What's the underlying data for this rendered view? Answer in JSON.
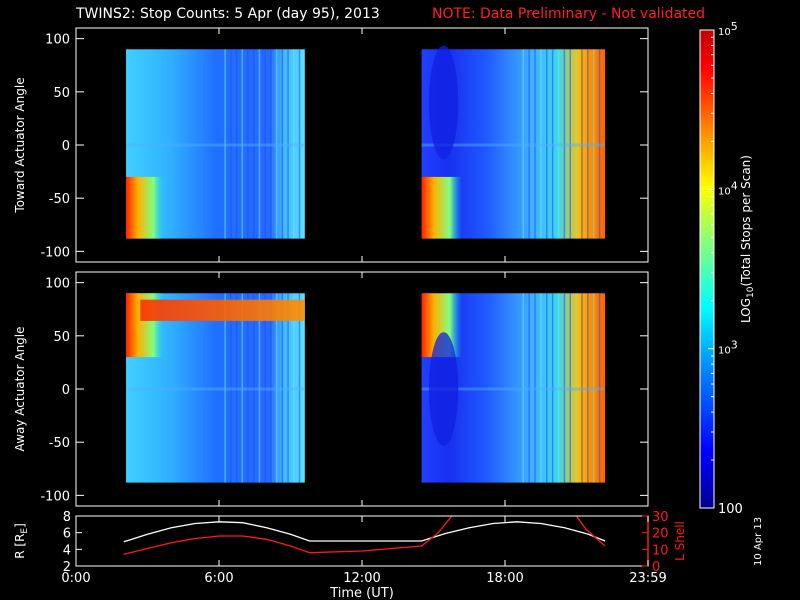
{
  "title": {
    "main": "TWINS2: Stop Counts:  5 Apr (day  95), 2013",
    "note": "NOTE: Data Preliminary - Not validated"
  },
  "side_date": "10 Apr 13",
  "colors": {
    "background": "#000000",
    "axes": "#ffffff",
    "note": "#ff2020",
    "lshell": "#ff1a1a",
    "radius": "#ffffff",
    "colormap": [
      "#000090",
      "#0000ff",
      "#0080ff",
      "#00ffff",
      "#80ff80",
      "#ffff00",
      "#ff8000",
      "#ff0000",
      "#c00000"
    ]
  },
  "chart_data": [
    {
      "type": "heatmap",
      "name": "toward",
      "ylabel": "Toward Actuator Angle",
      "ylim": [
        -110,
        110
      ],
      "yticks": [
        100,
        50,
        0,
        -50,
        -100
      ],
      "xlim": [
        0,
        24
      ],
      "data_y_range": [
        -88,
        90
      ],
      "segments": [
        {
          "x_start_hr": 2.1,
          "x_end_hr": 9.6
        },
        {
          "x_start_hr": 14.5,
          "x_end_hr": 22.2
        }
      ],
      "grid": false
    },
    {
      "type": "heatmap",
      "name": "away",
      "ylabel": "Away Actuator Angle",
      "ylim": [
        -110,
        110
      ],
      "yticks": [
        100,
        50,
        0,
        -50,
        -100
      ],
      "xlim": [
        0,
        24
      ],
      "data_y_range": [
        -88,
        90
      ],
      "segments": [
        {
          "x_start_hr": 2.1,
          "x_end_hr": 9.6
        },
        {
          "x_start_hr": 14.5,
          "x_end_hr": 22.2
        }
      ],
      "grid": false
    },
    {
      "type": "line",
      "name": "orbit",
      "xlabel": "Time (UT)",
      "xlim": [
        0,
        24
      ],
      "xticks": [
        "0:00",
        "6:00",
        "12:00",
        "18:00",
        "23:59"
      ],
      "xtick_hours": [
        0,
        6,
        12,
        18,
        24
      ],
      "left_axis": {
        "label": "R [RE]",
        "ylim": [
          2,
          8
        ],
        "ticks": [
          2,
          4,
          6,
          8
        ]
      },
      "right_axis": {
        "label": "L Shell",
        "ylim": [
          0,
          30
        ],
        "ticks": [
          0,
          10,
          20,
          30
        ]
      },
      "series": [
        {
          "name": "R",
          "axis": "left",
          "x": [
            2.0,
            3.0,
            4.0,
            5.0,
            6.0,
            7.0,
            8.0,
            9.0,
            9.8,
            12.0,
            14.5,
            15.5,
            16.5,
            17.5,
            18.5,
            19.5,
            20.5,
            21.5,
            22.2
          ],
          "y": [
            4.9,
            5.8,
            6.6,
            7.1,
            7.3,
            7.2,
            6.6,
            5.8,
            5.0,
            5.0,
            5.0,
            5.9,
            6.6,
            7.1,
            7.3,
            7.1,
            6.6,
            5.8,
            5.0
          ]
        },
        {
          "name": "L Shell",
          "axis": "right",
          "x": [
            2.0,
            3.0,
            4.0,
            5.0,
            6.0,
            7.0,
            8.0,
            9.0,
            9.8,
            12.0,
            14.5,
            15.2,
            16.0,
            20.8,
            21.4,
            22.2
          ],
          "y": [
            7,
            10.5,
            14,
            16.5,
            18,
            18,
            16,
            12,
            8,
            9,
            12,
            20,
            34,
            34,
            22,
            12
          ]
        }
      ]
    }
  ],
  "colorbar": {
    "label_parts": [
      "LOG",
      "10",
      "(Total Stops per Scan)"
    ],
    "scale": "log",
    "range": [
      100,
      100000
    ],
    "tick_labels": [
      {
        "value": 100000,
        "base": "10",
        "exp": "5"
      },
      {
        "value": 10000,
        "base": "10",
        "exp": "4"
      },
      {
        "value": 1000,
        "base": "10",
        "exp": "3"
      },
      {
        "value": 100,
        "text": "100"
      }
    ]
  }
}
